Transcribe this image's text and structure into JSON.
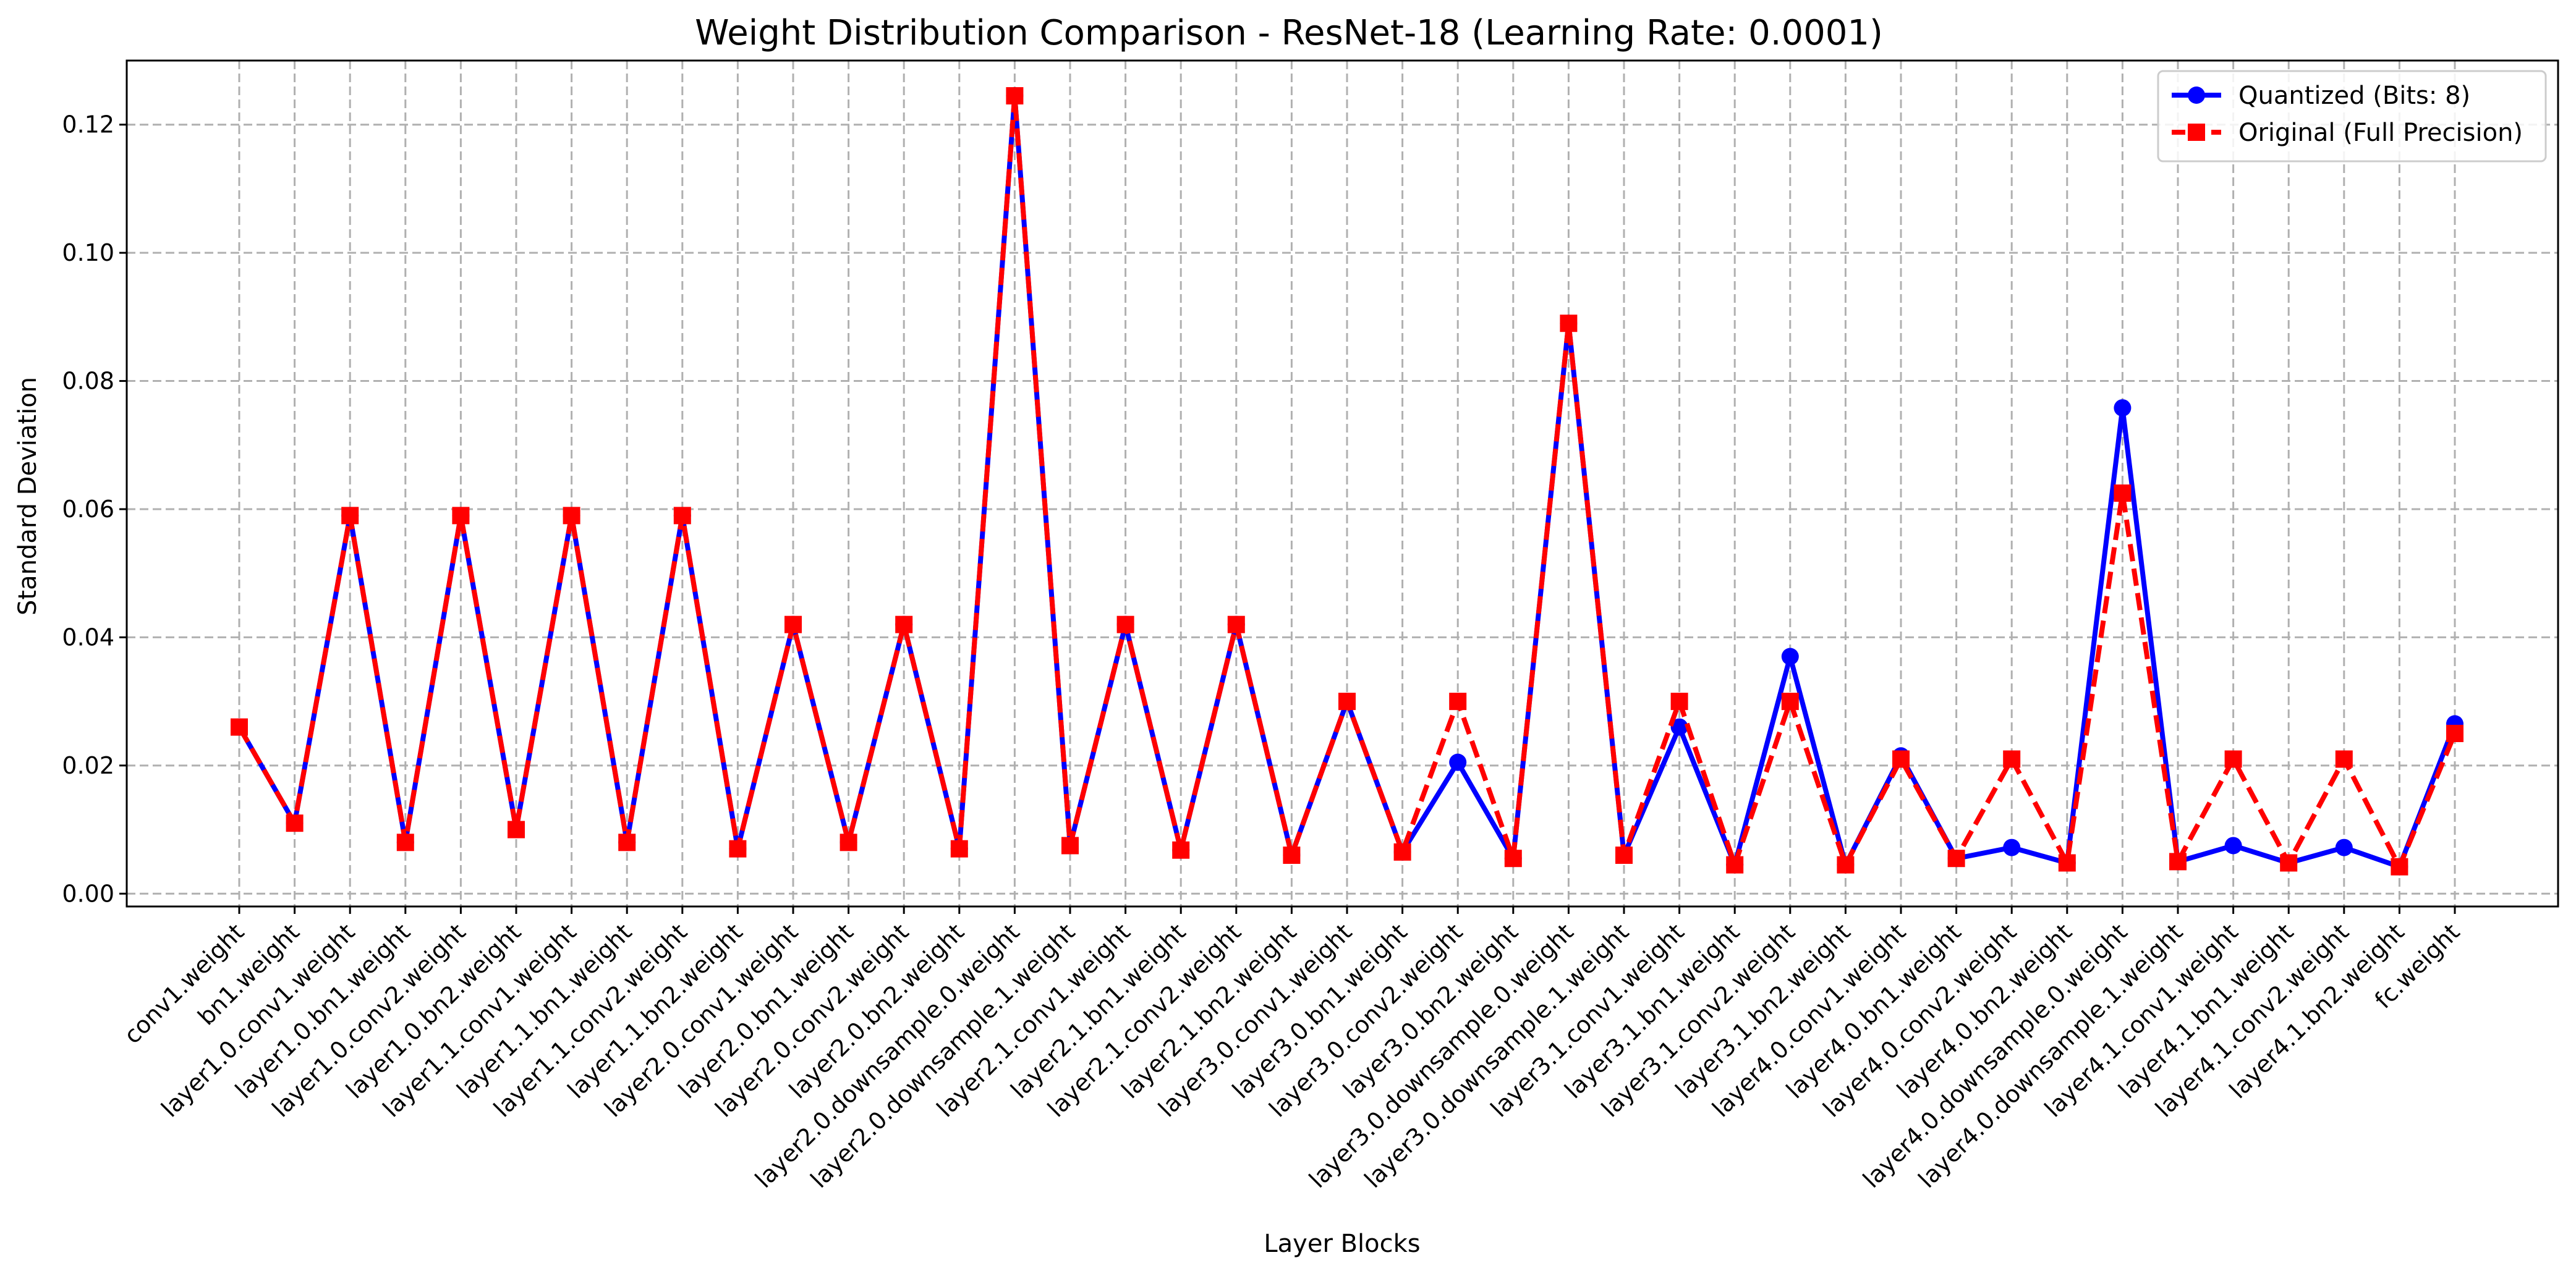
{
  "chart_data": {
    "type": "line",
    "title": "Weight Distribution Comparison - ResNet-18 (Learning Rate: 0.0001)",
    "xlabel": "Layer Blocks",
    "ylabel": "Standard Deviation",
    "ylim": [
      -0.002,
      0.13
    ],
    "yticks": [
      0.0,
      0.02,
      0.04,
      0.06,
      0.08,
      0.1,
      0.12
    ],
    "ytick_labels": [
      "0.00",
      "0.02",
      "0.04",
      "0.06",
      "0.08",
      "0.10",
      "0.12"
    ],
    "grid": true,
    "legend_position": "top-right",
    "categories": [
      "conv1.weight",
      "bn1.weight",
      "layer1.0.conv1.weight",
      "layer1.0.bn1.weight",
      "layer1.0.conv2.weight",
      "layer1.0.bn2.weight",
      "layer1.1.conv1.weight",
      "layer1.1.bn1.weight",
      "layer1.1.conv2.weight",
      "layer1.1.bn2.weight",
      "layer2.0.conv1.weight",
      "layer2.0.bn1.weight",
      "layer2.0.conv2.weight",
      "layer2.0.bn2.weight",
      "layer2.0.downsample.0.weight",
      "layer2.0.downsample.1.weight",
      "layer2.1.conv1.weight",
      "layer2.1.bn1.weight",
      "layer2.1.conv2.weight",
      "layer2.1.bn2.weight",
      "layer3.0.conv1.weight",
      "layer3.0.bn1.weight",
      "layer3.0.conv2.weight",
      "layer3.0.bn2.weight",
      "layer3.0.downsample.0.weight",
      "layer3.0.downsample.1.weight",
      "layer3.1.conv1.weight",
      "layer3.1.bn1.weight",
      "layer3.1.conv2.weight",
      "layer3.1.bn2.weight",
      "layer4.0.conv1.weight",
      "layer4.0.bn1.weight",
      "layer4.0.conv2.weight",
      "layer4.0.bn2.weight",
      "layer4.0.downsample.0.weight",
      "layer4.0.downsample.1.weight",
      "layer4.1.conv1.weight",
      "layer4.1.bn1.weight",
      "layer4.1.conv2.weight",
      "layer4.1.bn2.weight",
      "fc.weight"
    ],
    "series": [
      {
        "name": "Quantized (Bits: 8)",
        "color": "#0000ff",
        "marker": "circle",
        "linestyle": "solid",
        "values": [
          0.026,
          0.011,
          0.059,
          0.008,
          0.059,
          0.01,
          0.059,
          0.008,
          0.059,
          0.007,
          0.042,
          0.008,
          0.042,
          0.007,
          0.1245,
          0.0075,
          0.042,
          0.0068,
          0.042,
          0.006,
          0.03,
          0.0065,
          0.0205,
          0.0055,
          0.089,
          0.006,
          0.026,
          0.0045,
          0.037,
          0.0045,
          0.0215,
          0.0055,
          0.0072,
          0.0048,
          0.0758,
          0.005,
          0.0075,
          0.0048,
          0.0072,
          0.0042,
          0.0265
        ]
      },
      {
        "name": "Original (Full Precision)",
        "color": "#ff0000",
        "marker": "square",
        "linestyle": "dashed",
        "values": [
          0.026,
          0.011,
          0.059,
          0.008,
          0.059,
          0.01,
          0.059,
          0.008,
          0.059,
          0.007,
          0.042,
          0.008,
          0.042,
          0.007,
          0.1245,
          0.0075,
          0.042,
          0.0068,
          0.042,
          0.006,
          0.03,
          0.0065,
          0.03,
          0.0055,
          0.089,
          0.006,
          0.03,
          0.0045,
          0.03,
          0.0045,
          0.021,
          0.0055,
          0.021,
          0.0048,
          0.0625,
          0.005,
          0.021,
          0.0048,
          0.021,
          0.0042,
          0.025
        ]
      }
    ]
  }
}
